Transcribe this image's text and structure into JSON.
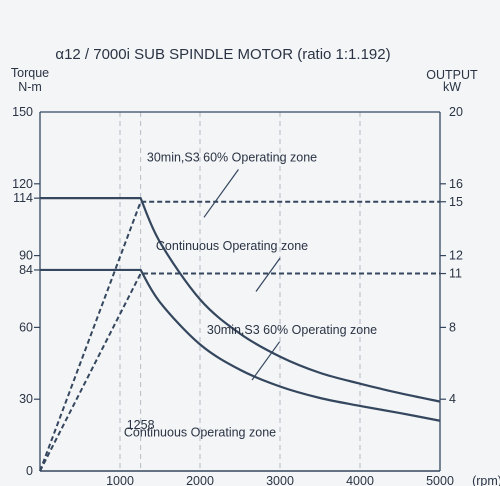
{
  "chart_data": {
    "type": "line",
    "title": "α12 / 7000i SUB SPINDLE MOTOR (ratio 1:1.192)",
    "left_axis_label_line1": "Torque",
    "left_axis_label_line2": "N-m",
    "right_axis_label_line1": "OUTPUT",
    "right_axis_label_line2": "kW",
    "x_unit_label": "(rpm)",
    "xlim": [
      0,
      5000
    ],
    "ylim_torque": [
      0,
      150
    ],
    "ylim_output": [
      0,
      20
    ],
    "x_ticks": [
      {
        "value": 1000,
        "label": "1000"
      },
      {
        "value": 2000,
        "label": "2000"
      },
      {
        "value": 3000,
        "label": "3000"
      },
      {
        "value": 4000,
        "label": "4000"
      },
      {
        "value": 5000,
        "label": "5000"
      }
    ],
    "left_ticks": [
      {
        "value": 0,
        "label": "0"
      },
      {
        "value": 30,
        "label": "30"
      },
      {
        "value": 60,
        "label": "60"
      },
      {
        "value": 84,
        "label": "84"
      },
      {
        "value": 90,
        "label": "90"
      },
      {
        "value": 114,
        "label": "114"
      },
      {
        "value": 120,
        "label": "120"
      },
      {
        "value": 150,
        "label": "150"
      }
    ],
    "right_ticks": [
      {
        "value": 4,
        "label": "4"
      },
      {
        "value": 8,
        "label": "8"
      },
      {
        "value": 11,
        "label": "11"
      },
      {
        "value": 12,
        "label": "12"
      },
      {
        "value": 15,
        "label": "15"
      },
      {
        "value": 16,
        "label": "16"
      },
      {
        "value": 20,
        "label": "20"
      }
    ],
    "base_speed_rpm": 1258,
    "base_speed_label": "1258",
    "grid": "vertical dashed at x ticks",
    "series": [
      {
        "axis": "torque",
        "style": "solid",
        "x": [
          0,
          1258,
          1500,
          2000,
          2500,
          3000,
          3500,
          4000,
          4500,
          5000
        ],
        "y": [
          114,
          114,
          95.6,
          71.7,
          57.4,
          47.8,
          41.0,
          36.5,
          32.5,
          29.0
        ]
      },
      {
        "axis": "torque",
        "style": "solid",
        "x": [
          0,
          1258,
          1500,
          2000,
          2500,
          3000,
          3500,
          4000,
          4500,
          5000
        ],
        "y": [
          84,
          84,
          70.5,
          52.9,
          42.3,
          35.3,
          30.5,
          27.2,
          24.2,
          21.0
        ]
      },
      {
        "axis": "output",
        "style": "dashed",
        "x": [
          0,
          1258,
          5000
        ],
        "y": [
          0,
          15,
          15
        ]
      },
      {
        "axis": "output",
        "style": "dashed",
        "x": [
          0,
          1258,
          5000
        ],
        "y": [
          0,
          11,
          11
        ]
      }
    ],
    "annotations": [
      {
        "text": "30min,S3 60% Operating zone",
        "x": 2400,
        "y": 131,
        "axis": "torque",
        "pointer_to": [
          2050,
          106
        ]
      },
      {
        "text": "Continuous Operating zone",
        "x": 2400,
        "y": 94,
        "axis": "torque",
        "pointer_to": [
          2700,
          75
        ]
      },
      {
        "text": "30min,S3 60% Operating zone",
        "x": 3150,
        "y": 59,
        "axis": "torque",
        "pointer_to": [
          2650,
          38
        ]
      },
      {
        "text": "Continuous Operating zone",
        "x": 2000,
        "y": 16,
        "axis": "torque",
        "pointer_to": null
      }
    ],
    "colors": {
      "line": "#34475e",
      "text": "#2a3444",
      "grid": "#b4bcc6",
      "frame": "#34475e",
      "background": "#f4f5f7"
    }
  }
}
